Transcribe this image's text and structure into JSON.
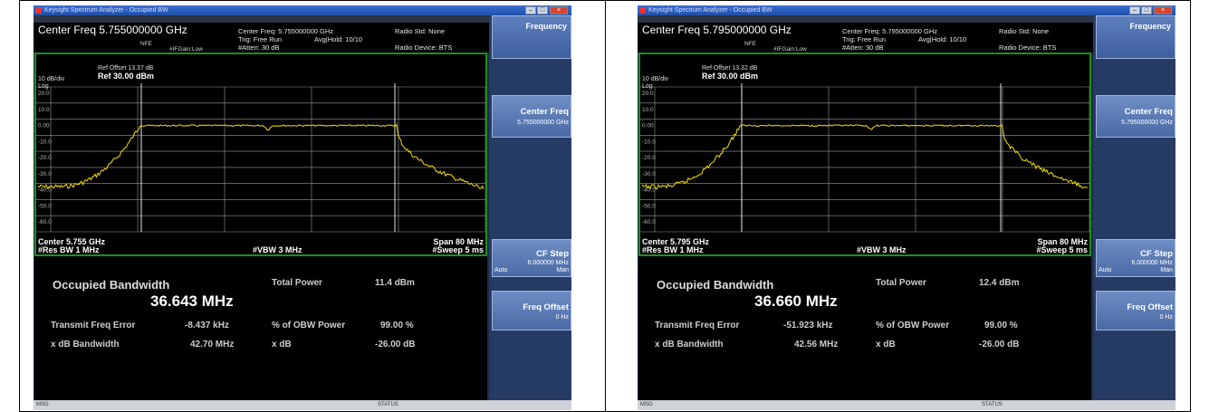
{
  "screens": [
    {
      "title": "Keysight Spectrum Analyzer - Occupied BW",
      "center_freq_header": "Center Freq 5.755000000 GHz",
      "nfe": "NFE",
      "ifgain": "#IFGain:Low",
      "center_freq_small": "Center Freq: 5.755000000 GHz",
      "trig": "Trig: Free Run",
      "avg_hold": "Avg|Hold: 10/10",
      "atten": "#Atten: 30 dB",
      "radio_std": "Radio Std: None",
      "radio_device": "Radio Device: BTS",
      "ref_offset": "Ref Offset 13.37 dB",
      "ref_level": "Ref 30.00 dBm",
      "scale": "10 dB/div",
      "log": "Log",
      "y_ticks": [
        "20.0",
        "10.0",
        "0.00",
        "-10.0",
        "-20.0",
        "-30.0",
        "-40.0",
        "-50.0",
        "-60.0"
      ],
      "center_bottom": "Center 5.755 GHz",
      "span": "Span 80 MHz",
      "res_bw": "#Res BW 1 MHz",
      "vbw": "#VBW 3 MHz",
      "sweep": "#Sweep 5 ms",
      "obw_label": "Occupied Bandwidth",
      "obw_value": "36.643 MHz",
      "total_power_label": "Total Power",
      "total_power_value": "11.4 dBm",
      "tx_err_label": "Transmit Freq Error",
      "tx_err_value": "-8.437 kHz",
      "pct_obw_label": "% of OBW Power",
      "pct_obw_value": "99.00 %",
      "xdb_bw_label": "x dB Bandwidth",
      "xdb_bw_value": "42.70 MHz",
      "xdb_label": "x dB",
      "xdb_value": "-26.00 dB",
      "softkeys": {
        "frequency": "Frequency",
        "center_freq": "Center Freq",
        "center_freq_val": "5.755000000 GHz",
        "cf_step": "CF Step",
        "cf_step_val": "6.000000 MHz",
        "auto": "Auto",
        "man": "Man",
        "freq_offset": "Freq Offset",
        "freq_offset_val": "0 Hz"
      },
      "status_left": "MSG",
      "status_mid": "STATUS",
      "trace_shift": 0
    },
    {
      "title": "Keysight Spectrum Analyzer - Occupied BW",
      "center_freq_header": "Center Freq 5.795000000 GHz",
      "nfe": "NFE",
      "ifgain": "#IFGain:Low",
      "center_freq_small": "Center Freq: 5.795000000 GHz",
      "trig": "Trig: Free Run",
      "avg_hold": "Avg|Hold: 10/10",
      "atten": "#Atten: 30 dB",
      "radio_std": "Radio Std: None",
      "radio_device": "Radio Device: BTS",
      "ref_offset": "Ref Offset 13.32 dB",
      "ref_level": "Ref 30.00 dBm",
      "scale": "10 dB/div",
      "log": "Log",
      "y_ticks": [
        "20.0",
        "10.0",
        "0.00",
        "-10.0",
        "-20.0",
        "-30.0",
        "-40.0",
        "-50.0",
        "-60.0"
      ],
      "center_bottom": "Center 5.795 GHz",
      "span": "Span 80 MHz",
      "res_bw": "#Res BW 1 MHz",
      "vbw": "#VBW 3 MHz",
      "sweep": "#Sweep 5 ms",
      "obw_label": "Occupied Bandwidth",
      "obw_value": "36.660 MHz",
      "total_power_label": "Total Power",
      "total_power_value": "12.4 dBm",
      "tx_err_label": "Transmit Freq Error",
      "tx_err_value": "-51.923 kHz",
      "pct_obw_label": "% of OBW Power",
      "pct_obw_value": "99.00 %",
      "xdb_bw_label": "x dB Bandwidth",
      "xdb_bw_value": "42.56 MHz",
      "xdb_label": "x dB",
      "xdb_value": "-26.00 dB",
      "softkeys": {
        "frequency": "Frequency",
        "center_freq": "Center Freq",
        "center_freq_val": "5.795000000 GHz",
        "cf_step": "CF Step",
        "cf_step_val": "6.000000 MHz",
        "auto": "Auto",
        "man": "Man",
        "freq_offset": "Freq Offset",
        "freq_offset_val": "0 Hz"
      },
      "status_left": "MSG",
      "status_mid": "STATUS",
      "trace_shift": 1
    }
  ],
  "colors": {
    "trace": "#f2e200",
    "grid": "#9a9a9a",
    "frame": "#1f8d1f"
  }
}
